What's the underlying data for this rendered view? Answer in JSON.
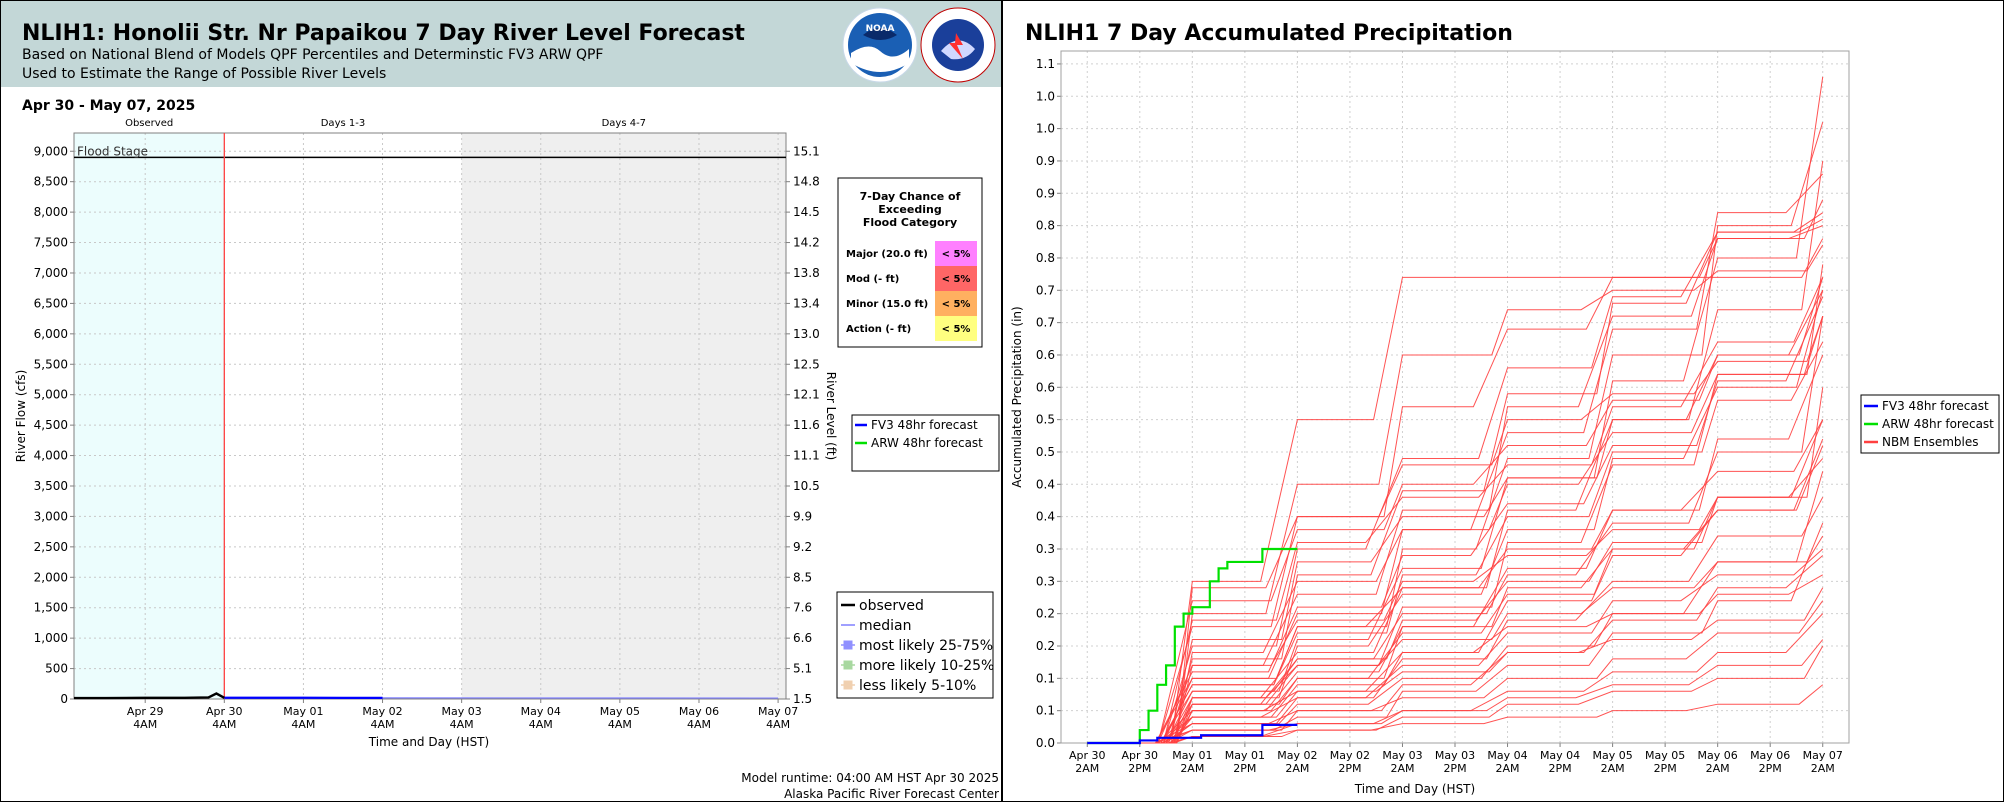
{
  "left": {
    "title": "NLIH1: Honolii Str. Nr Papaikou 7 Day River Level Forecast",
    "subtitle_1": "Based on National Blend of Models QPF Percentiles and Determinstic FV3 ARW QPF",
    "subtitle_2": "Used to Estimate the Range of Possible River Levels",
    "logos": [
      "noaa-logo",
      "national-weather-service-logo"
    ],
    "date_range": "Apr 30 - May 07, 2025",
    "period_labels": [
      "Observed",
      "Days 1-3",
      "Days 4-7"
    ],
    "flood_stage_label": "Flood Stage",
    "ylabel_left": "River Flow (cfs)",
    "ylabel_right": "River Level (ft)",
    "xlabel": "Time and Day (HST)",
    "model_runtime": "Model runtime: 04:00 AM HST Apr 30 2025",
    "center": "Alaska Pacific River Forecast Center",
    "exceed_table": {
      "title_lines": [
        "7-Day Chance of",
        "Exceeding",
        "Flood Category"
      ],
      "rows": [
        {
          "label": "Major (20.0 ft)",
          "value": "< 5%",
          "color": "#ff80ff"
        },
        {
          "label": "Mod (- ft)",
          "value": "< 5%",
          "color": "#ff6666"
        },
        {
          "label": "Minor (15.0 ft)",
          "value": "< 5%",
          "color": "#ffb060"
        },
        {
          "label": "Action (- ft)",
          "value": "< 5%",
          "color": "#ffff80"
        }
      ]
    },
    "legend_forecast": [
      {
        "name": "FV3 48hr forecast",
        "color": "#0000ff"
      },
      {
        "name": "ARW 48hr forecast",
        "color": "#00e000"
      }
    ],
    "legend_stats": [
      {
        "name": "observed",
        "color": "#000000",
        "kind": "line"
      },
      {
        "name": "median",
        "color": "#8080ff",
        "kind": "line"
      },
      {
        "name": "most likely 25-75%",
        "color": "#9090ff",
        "kind": "box"
      },
      {
        "name": "more likely 10-25%",
        "color": "#a8d8a0",
        "kind": "box"
      },
      {
        "name": "less likely 5-10%",
        "color": "#f0d0b0",
        "kind": "box"
      }
    ],
    "colors": {
      "observed_bg": "#ecfdfd",
      "days47_bg": "#efefef",
      "now_line": "#ff4040",
      "flood_line": "#000000"
    }
  },
  "right": {
    "title": "NLIH1 7 Day Accumulated Precipitation",
    "ylabel": "Accumulated Precipitation (in)",
    "xlabel": "Time and Day (HST)",
    "legend": [
      {
        "name": "FV3 48hr forecast",
        "color": "#0000ff"
      },
      {
        "name": "ARW 48hr forecast",
        "color": "#00e000"
      },
      {
        "name": "NBM Ensembles",
        "color": "#ff4040"
      }
    ]
  },
  "chart_data": [
    {
      "type": "line",
      "title": "NLIH1: Honolii Str. Nr Papaikou 7 Day River Level Forecast",
      "xlabel": "Time and Day (HST)",
      "ylabel": "River Flow (cfs)",
      "ylabel_right": "River Level (ft)",
      "x_ticks": [
        "Apr 29\n4AM",
        "Apr 30\n4AM",
        "May 01\n4AM",
        "May 02\n4AM",
        "May 03\n4AM",
        "May 04\n4AM",
        "May 05\n4AM",
        "May 06\n4AM",
        "May 07\n4AM"
      ],
      "x_range_days": [
        -1.9,
        7.1
      ],
      "ylim": [
        0,
        9300
      ],
      "y_ticks": [
        0,
        500,
        1000,
        1500,
        2000,
        2500,
        3000,
        3500,
        4000,
        4500,
        5000,
        5500,
        6000,
        6500,
        7000,
        7500,
        8000,
        8500,
        9000
      ],
      "y_right_ticks": [
        "1.5",
        "5.1",
        "6.6",
        "7.6",
        "8.5",
        "9.2",
        "9.9",
        "10.5",
        "11.1",
        "11.6",
        "12.1",
        "12.5",
        "13.0",
        "13.4",
        "13.8",
        "14.2",
        "14.5",
        "14.8",
        "15.1"
      ],
      "flood_stage_cfs": 8900,
      "series": [
        {
          "name": "observed",
          "x_days": [
            -1.9,
            -1.5,
            -1.0,
            -0.5,
            -0.2,
            -0.1,
            0.0
          ],
          "values": [
            15,
            15,
            20,
            20,
            25,
            90,
            20
          ]
        },
        {
          "name": "FV3 48hr forecast",
          "x_days": [
            0.0,
            0.5,
            1.0,
            1.5,
            2.0
          ],
          "values": [
            20,
            20,
            20,
            18,
            18
          ]
        },
        {
          "name": "median",
          "x_days": [
            0.0,
            2.0,
            4.0,
            7.0
          ],
          "values": [
            20,
            18,
            17,
            15
          ]
        }
      ]
    },
    {
      "type": "line",
      "title": "NLIH1 7 Day Accumulated Precipitation",
      "xlabel": "Time and Day (HST)",
      "ylabel": "Accumulated Precipitation (in)",
      "x_ticks": [
        "Apr 30\n2AM",
        "Apr 30\n2PM",
        "May 01\n2AM",
        "May 01\n2PM",
        "May 02\n2AM",
        "May 02\n2PM",
        "May 03\n2AM",
        "May 03\n2PM",
        "May 04\n2AM",
        "May 04\n2PM",
        "May 05\n2AM",
        "May 05\n2PM",
        "May 06\n2AM",
        "May 06\n2PM",
        "May 07\n2AM"
      ],
      "x_range_hours": [
        -6,
        174
      ],
      "ylim": [
        0,
        1.07
      ],
      "y_ticks": [
        0.0,
        0.05,
        0.1,
        0.15,
        0.2,
        0.25,
        0.3,
        0.35,
        0.4,
        0.45,
        0.5,
        0.55,
        0.6,
        0.65,
        0.7,
        0.75,
        0.8,
        0.85,
        0.9,
        0.95,
        1.0,
        1.05
      ],
      "y_tick_labels": [
        "0.0",
        "0.1",
        "0.1",
        "0.2",
        "0.2",
        "0.3",
        "0.3",
        "0.4",
        "0.4",
        "0.5",
        "0.5",
        "0.6",
        "0.6",
        "0.7",
        "0.7",
        "0.8",
        "0.8",
        "0.9",
        "0.9",
        "1.0",
        "1.0",
        "1.1"
      ],
      "series": [
        {
          "name": "FV3 48hr forecast",
          "x_hours": [
            0,
            10,
            12,
            16,
            20,
            26,
            30,
            38,
            40,
            48
          ],
          "values": [
            0,
            0,
            0.004,
            0.008,
            0.008,
            0.012,
            0.012,
            0.012,
            0.028,
            0.028
          ]
        },
        {
          "name": "ARW 48hr forecast",
          "x_hours": [
            0,
            10,
            12,
            14,
            16,
            18,
            20,
            22,
            24,
            26,
            28,
            30,
            32,
            34,
            36,
            38,
            40,
            42,
            44,
            46,
            48
          ],
          "values": [
            0,
            0,
            0.02,
            0.05,
            0.09,
            0.12,
            0.18,
            0.2,
            0.21,
            0.21,
            0.25,
            0.27,
            0.28,
            0.28,
            0.28,
            0.28,
            0.3,
            0.3,
            0.3,
            0.3,
            0.3
          ]
        },
        {
          "name": "NBM Ensembles",
          "x_hours": [
            0,
            24,
            48,
            72,
            96,
            120,
            144,
            168
          ],
          "members": [
            [
              0,
              0.04,
              0.08,
              0.14,
              0.22,
              0.29,
              0.36,
              0.47
            ],
            [
              0,
              0.05,
              0.1,
              0.18,
              0.27,
              0.36,
              0.47,
              0.6
            ],
            [
              0,
              0.06,
              0.12,
              0.21,
              0.31,
              0.43,
              0.57,
              0.74
            ],
            [
              0,
              0.07,
              0.14,
              0.24,
              0.36,
              0.5,
              0.67,
              0.9
            ],
            [
              0,
              0.08,
              0.16,
              0.27,
              0.41,
              0.56,
              0.75,
              1.03
            ],
            [
              0,
              0.09,
              0.18,
              0.3,
              0.44,
              0.6,
              0.8,
              0.96
            ],
            [
              0,
              0.1,
              0.2,
              0.33,
              0.48,
              0.64,
              0.82,
              0.88
            ],
            [
              0,
              0.12,
              0.23,
              0.36,
              0.52,
              0.66,
              0.78,
              0.84
            ],
            [
              0,
              0.13,
              0.26,
              0.39,
              0.54,
              0.68,
              0.79,
              0.81
            ],
            [
              0,
              0.15,
              0.3,
              0.44,
              0.58,
              0.69,
              0.79,
              0.82
            ],
            [
              0,
              0.18,
              0.35,
              0.52,
              0.64,
              0.72,
              0.78,
              0.8
            ],
            [
              0,
              0.2,
              0.4,
              0.6,
              0.67,
              0.7,
              0.73,
              0.77
            ],
            [
              0,
              0.25,
              0.5,
              0.72,
              0.72,
              0.72,
              0.72,
              0.78
            ],
            [
              0,
              0.03,
              0.06,
              0.1,
              0.15,
              0.2,
              0.28,
              0.42
            ],
            [
              0,
              0.02,
              0.04,
              0.08,
              0.12,
              0.17,
              0.22,
              0.34
            ],
            [
              0,
              0.02,
              0.03,
              0.05,
              0.08,
              0.11,
              0.14,
              0.2
            ],
            [
              0,
              0.01,
              0.02,
              0.04,
              0.06,
              0.08,
              0.1,
              0.15
            ],
            [
              0,
              0.01,
              0.02,
              0.03,
              0.04,
              0.05,
              0.06,
              0.09
            ],
            [
              0,
              0.03,
              0.07,
              0.12,
              0.17,
              0.22,
              0.26,
              0.3
            ],
            [
              0,
              0.04,
              0.09,
              0.14,
              0.18,
              0.2,
              0.23,
              0.26
            ],
            [
              0,
              0.05,
              0.11,
              0.18,
              0.24,
              0.3,
              0.38,
              0.55
            ],
            [
              0,
              0.06,
              0.13,
              0.2,
              0.26,
              0.34,
              0.45,
              0.66
            ],
            [
              0,
              0.07,
              0.15,
              0.23,
              0.33,
              0.44,
              0.55,
              0.7
            ],
            [
              0,
              0.09,
              0.17,
              0.26,
              0.35,
              0.45,
              0.53,
              0.62
            ],
            [
              0,
              0.11,
              0.21,
              0.29,
              0.37,
              0.46,
              0.56,
              0.69
            ],
            [
              0,
              0.14,
              0.25,
              0.33,
              0.4,
              0.48,
              0.57,
              0.66
            ],
            [
              0,
              0.16,
              0.28,
              0.35,
              0.41,
              0.5,
              0.6,
              0.72
            ],
            [
              0,
              0.19,
              0.31,
              0.38,
              0.43,
              0.52,
              0.62,
              0.72
            ],
            [
              0,
              0.22,
              0.33,
              0.4,
              0.46,
              0.53,
              0.6,
              0.7
            ],
            [
              0,
              0.24,
              0.35,
              0.43,
              0.5,
              0.54,
              0.59,
              0.66
            ],
            [
              0,
              0.04,
              0.07,
              0.13,
              0.19,
              0.25,
              0.32,
              0.38
            ],
            [
              0,
              0.06,
              0.1,
              0.17,
              0.23,
              0.3,
              0.36,
              0.46
            ],
            [
              0,
              0.08,
              0.13,
              0.19,
              0.25,
              0.31,
              0.38,
              0.5
            ],
            [
              0,
              0.03,
              0.05,
              0.09,
              0.14,
              0.19,
              0.24,
              0.29
            ],
            [
              0,
              0.05,
              0.08,
              0.11,
              0.14,
              0.16,
              0.19,
              0.24
            ],
            [
              0,
              0.02,
              0.05,
              0.07,
              0.1,
              0.13,
              0.17,
              0.22
            ],
            [
              0,
              0.1,
              0.18,
              0.24,
              0.3,
              0.36,
              0.42,
              0.5
            ],
            [
              0,
              0.12,
              0.19,
              0.25,
              0.29,
              0.33,
              0.38,
              0.44
            ],
            [
              0,
              0.07,
              0.12,
              0.16,
              0.2,
              0.24,
              0.28,
              0.32
            ],
            [
              0,
              0.01,
              0.03,
              0.05,
              0.07,
              0.09,
              0.12,
              0.16
            ]
          ]
        }
      ]
    }
  ]
}
